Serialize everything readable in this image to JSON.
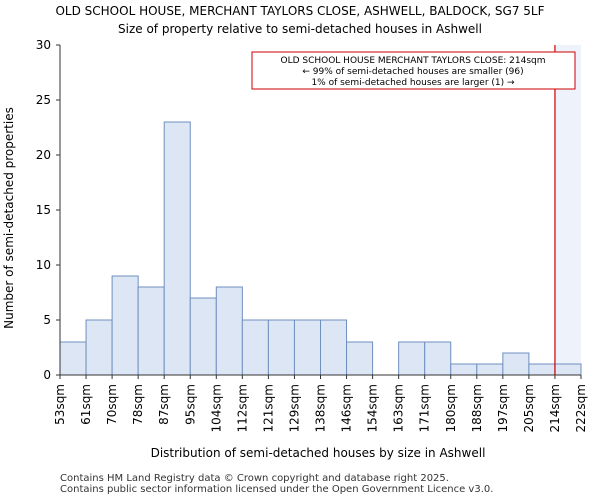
{
  "chart_data": {
    "type": "bar",
    "title": "OLD SCHOOL HOUSE, MERCHANT TAYLORS CLOSE, ASHWELL, BALDOCK, SG7 5LF",
    "subtitle": "Size of property relative to semi-detached houses in Ashwell",
    "xlabel": "Distribution of semi-detached houses by size in Ashwell",
    "ylabel": "Number of semi-detached properties",
    "bin_edges": [
      "53sqm",
      "61sqm",
      "70sqm",
      "78sqm",
      "87sqm",
      "95sqm",
      "104sqm",
      "112sqm",
      "121sqm",
      "129sqm",
      "138sqm",
      "146sqm",
      "154sqm",
      "163sqm",
      "171sqm",
      "180sqm",
      "188sqm",
      "197sqm",
      "205sqm",
      "214sqm",
      "222sqm"
    ],
    "values": [
      3,
      5,
      9,
      8,
      23,
      7,
      8,
      5,
      5,
      5,
      5,
      3,
      0,
      3,
      3,
      1,
      1,
      2,
      1,
      1
    ],
    "ylim": [
      0,
      30
    ],
    "yticks": [
      0,
      5,
      10,
      15,
      20,
      25,
      30
    ],
    "marker": {
      "value_sqm": 214,
      "bin_index": 19,
      "color": "#cc0000"
    },
    "annotation": {
      "line1": "OLD SCHOOL HOUSE MERCHANT TAYLORS CLOSE: 214sqm",
      "line2": "← 99% of semi-detached houses are smaller (96)",
      "line3": "1% of semi-detached houses are larger (1) →"
    },
    "colors": {
      "bar_fill": "#dce6f4",
      "bar_stroke": "#6f8fbf",
      "highlight_fill": "#eef3fb",
      "axis": "#333333"
    }
  },
  "footer": {
    "line1": "Contains HM Land Registry data © Crown copyright and database right 2025.",
    "line2": "Contains public sector information licensed under the Open Government Licence v3.0."
  }
}
